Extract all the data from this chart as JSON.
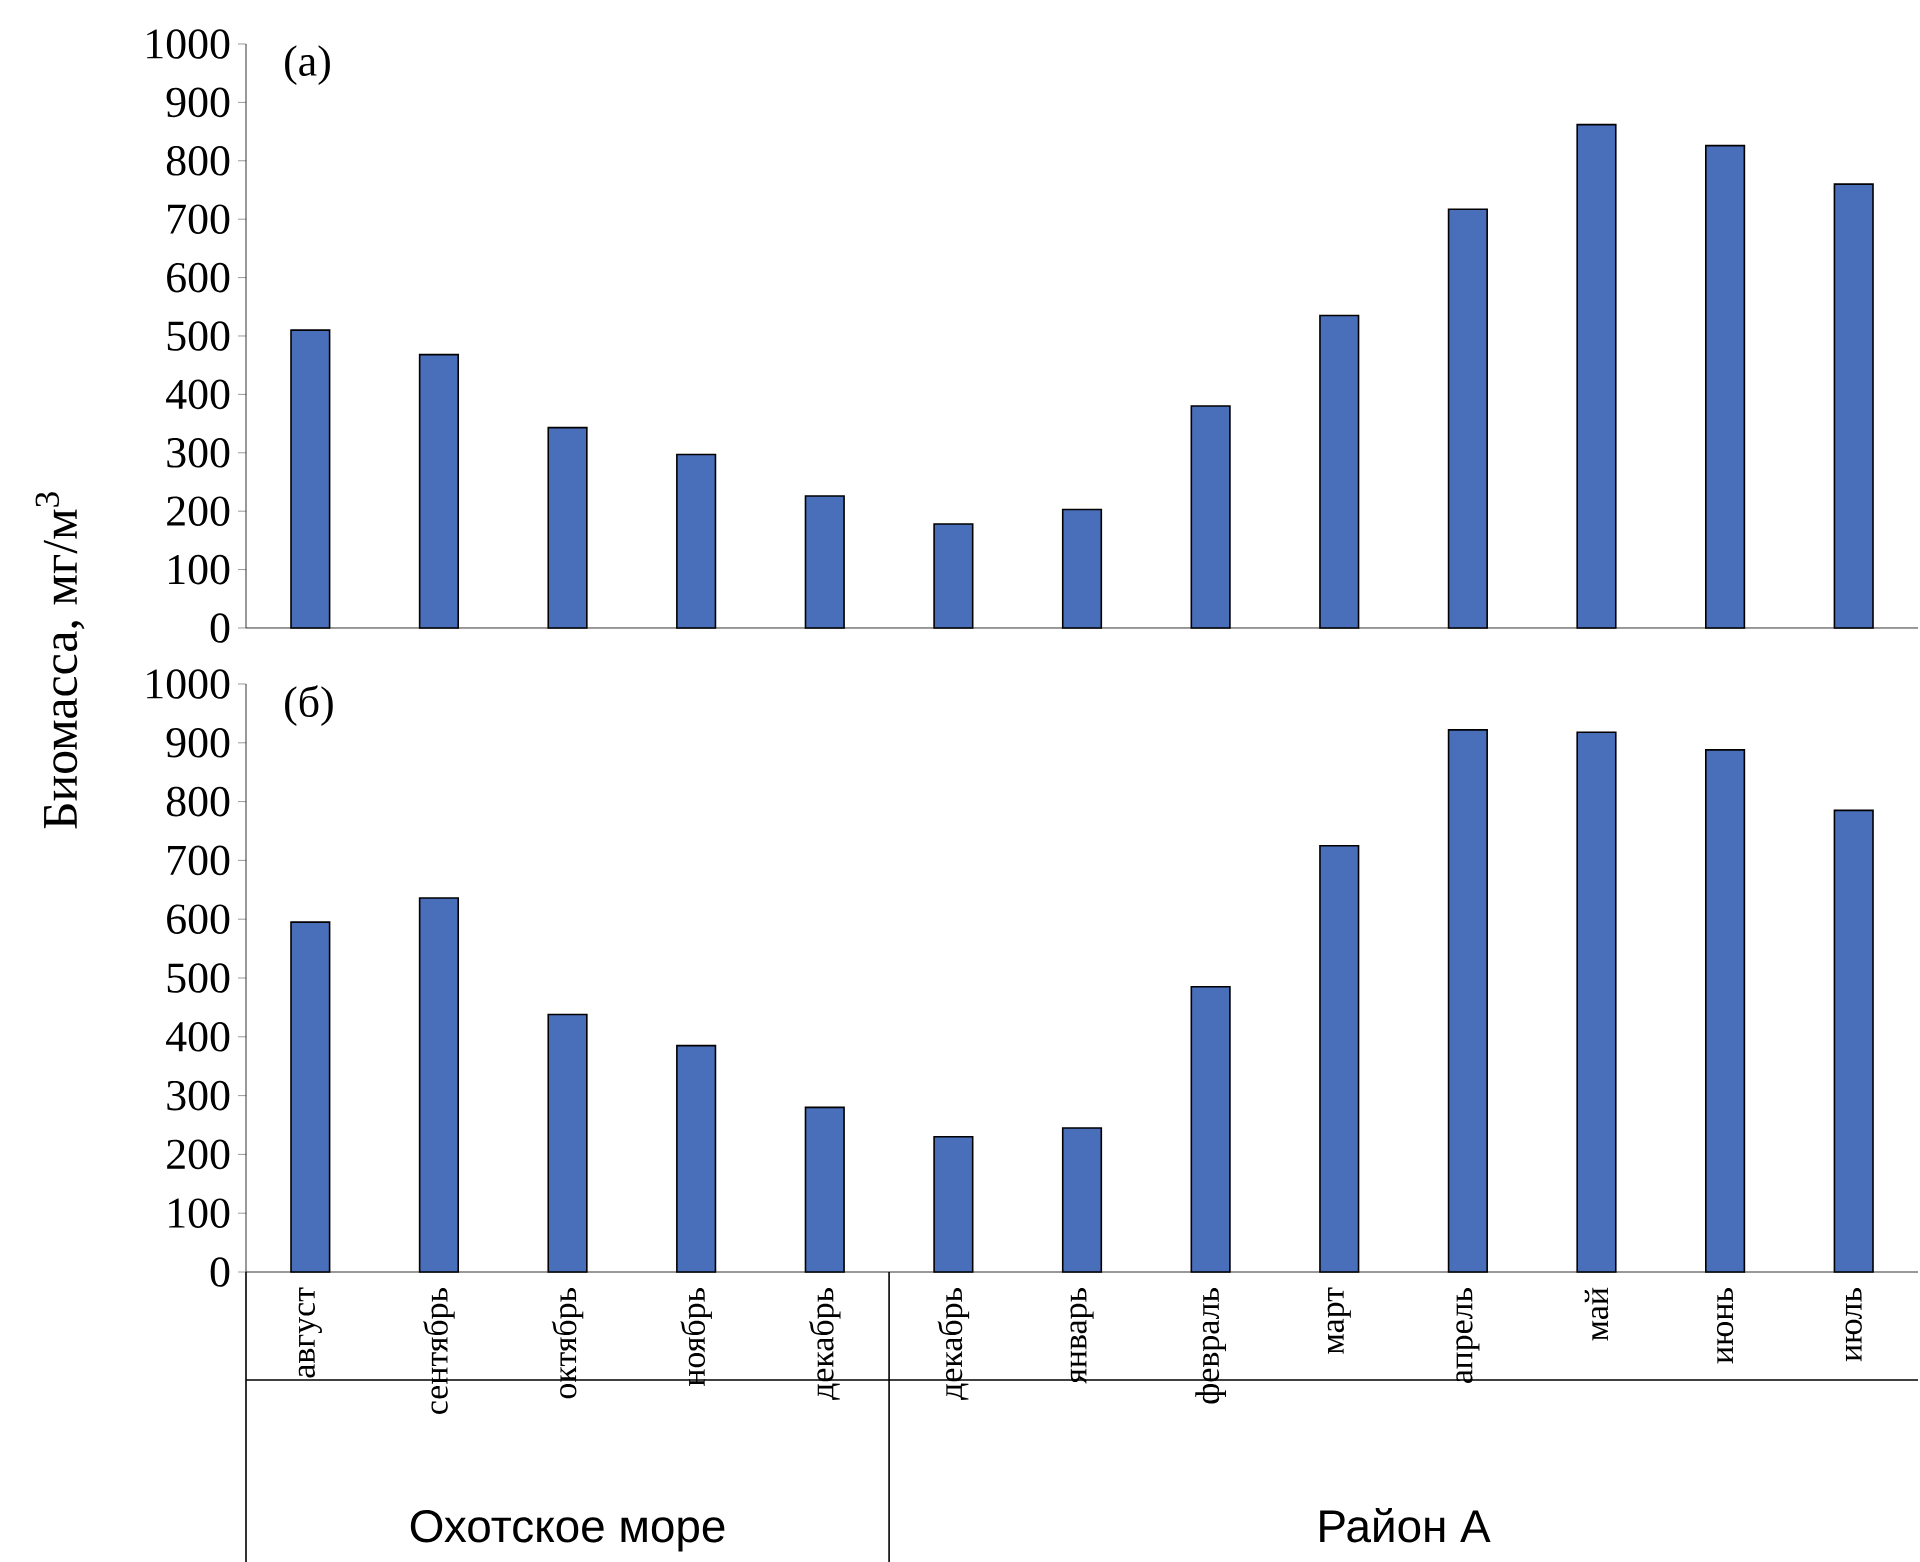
{
  "chart_data": [
    {
      "type": "bar",
      "title": "(a)",
      "ylabel": "Биомасса, мг/м$^{3}$",
      "categories": [
        null,
        null,
        null,
        null,
        null,
        null,
        null,
        null,
        null,
        null,
        null,
        null,
        null
      ],
      "values": [
        510,
        468,
        343,
        297,
        226,
        178,
        203,
        380,
        535,
        717,
        862,
        826,
        760
      ],
      "color": "#4a6fba",
      "ylim": [
        0,
        1000
      ],
      "yticks": [
        0,
        100,
        200,
        300,
        400,
        500,
        600,
        700,
        800,
        900,
        1000
      ],
      "tick_labels": "y"
    },
    {
      "type": "bar",
      "title": "(б)",
      "categories": [
        "август",
        "сентябрь",
        "октябрь",
        "ноябрь",
        "декабрь",
        "декабрь",
        "январь",
        "февраль",
        "март",
        "апрель",
        "май",
        "июнь",
        "июль"
      ],
      "values": [
        595,
        636,
        438,
        385,
        280,
        230,
        245,
        485,
        725,
        922,
        918,
        888,
        785
      ],
      "color": "#4a6fba",
      "ylim": [
        0,
        1000
      ],
      "yticks": [
        0,
        100,
        200,
        300,
        400,
        500,
        600,
        700,
        800,
        900,
        1000
      ],
      "annotations": [
        "Охотское море",
        "Район А"
      ]
    }
  ]
}
